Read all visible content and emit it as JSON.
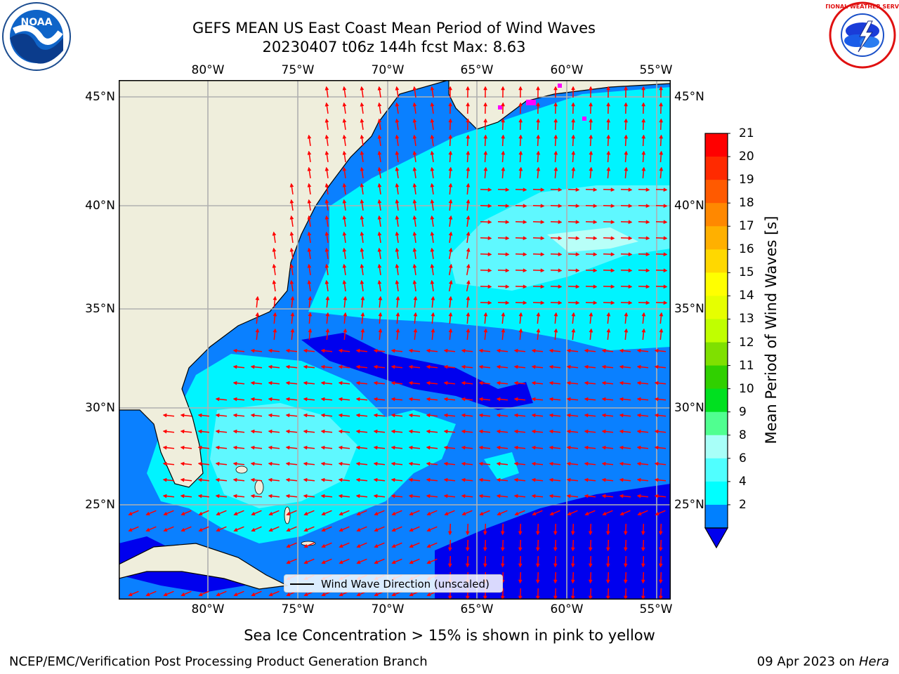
{
  "title": {
    "line1": "GEFS MEAN US East Coast Mean Period of Wind Waves",
    "line2": "20230407 t06z 144h fcst   Max: 8.63"
  },
  "map": {
    "lon_labels": [
      "80°W",
      "75°W",
      "70°W",
      "65°W",
      "60°W",
      "55°W"
    ],
    "lat_labels": [
      "45°N",
      "40°N",
      "35°N",
      "30°N",
      "25°N"
    ],
    "legend_label": "Wind Wave Direction (unscaled)"
  },
  "colorbar": {
    "label": "Mean Period of Wind Waves [s]",
    "ticks": [
      "21",
      "20",
      "19",
      "18",
      "17",
      "16",
      "15",
      "14",
      "13",
      "12",
      "11",
      "10",
      "9",
      "8",
      "6",
      "4",
      "2"
    ],
    "colors": [
      "#ff0000",
      "#ff2a00",
      "#ff5a00",
      "#ff8800",
      "#ffb000",
      "#ffd800",
      "#ffff00",
      "#e6ff00",
      "#c0ff00",
      "#7fe000",
      "#30d000",
      "#00e020",
      "#50ff90",
      "#a8fff8",
      "#50ffff",
      "#00ffff",
      "#0080ff"
    ]
  },
  "logos": {
    "noaa_text": "NOAA",
    "nws_text": "NATIONAL WEATHER SERVICE"
  },
  "note": "Sea Ice Concentration > 15% is shown in pink to yellow",
  "footer": {
    "left": "NCEP/EMC/Verification Post Processing Product Generation Branch",
    "date": "09 Apr 2023 on",
    "machine": "Hera"
  },
  "colors": {
    "land": "#efeedc",
    "deep_blue": "#0000ee",
    "blue": "#0a80ff",
    "cyan": "#00f4ff",
    "light_cyan": "#5ff8ff",
    "pale_cyan": "#b8fff8",
    "arrow": "#ff0000"
  }
}
